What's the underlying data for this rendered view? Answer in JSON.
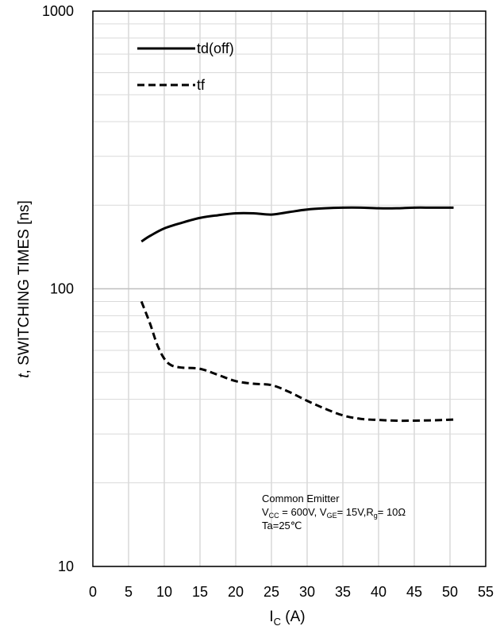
{
  "chart_data": {
    "type": "line",
    "xlabel_main": "I",
    "xlabel_sub": "C",
    "xlabel_unit": " (A)",
    "ylabel_italic": "t",
    "ylabel_rest": ", SWITCHING TIMES [ns]",
    "y_scale": "log",
    "xlim": [
      0,
      55
    ],
    "ylim": [
      10,
      1000
    ],
    "x_ticks": [
      0,
      5,
      10,
      15,
      20,
      25,
      30,
      35,
      40,
      45,
      50,
      55
    ],
    "x_tick_labels": [
      "0",
      "5",
      "10",
      "15",
      "20",
      "25",
      "30",
      "35",
      "40",
      "45",
      "50",
      "55"
    ],
    "y_ticks": [
      10,
      100,
      1000
    ],
    "y_tick_labels": [
      "10",
      "100",
      "1000"
    ],
    "grid": true,
    "legend_position": "top-left",
    "series": [
      {
        "name": "td(off)",
        "style": "solid",
        "color": "#000000",
        "x": [
          6.8,
          8,
          10,
          12.5,
          15,
          17.5,
          20,
          22.5,
          25,
          27.5,
          30,
          32.5,
          35,
          37.5,
          40,
          42.5,
          45,
          47.5,
          50.5
        ],
        "y": [
          148,
          155,
          165,
          173,
          180,
          184,
          187,
          187,
          185,
          189,
          193,
          195,
          196,
          196,
          195,
          195,
          196,
          196,
          196
        ]
      },
      {
        "name": "tf",
        "style": "dashed",
        "color": "#000000",
        "x": [
          6.8,
          8,
          9,
          10,
          11,
          12.5,
          15,
          17.5,
          20,
          22.5,
          25,
          27.5,
          30,
          32.5,
          35,
          37.5,
          40,
          42.5,
          45,
          47.5,
          50.5
        ],
        "y": [
          90,
          75,
          63,
          56,
          53,
          52,
          51.5,
          49,
          46.5,
          45.5,
          45,
          42.5,
          39.5,
          37,
          35,
          34,
          33.7,
          33.5,
          33.5,
          33.6,
          33.8
        ]
      }
    ],
    "annotation": {
      "line1": "Common Emitter",
      "line2_parts": [
        {
          "t": "V",
          "sub": false
        },
        {
          "t": "CC",
          "sub": true
        },
        {
          "t": " = 600V, V",
          "sub": false
        },
        {
          "t": "GE",
          "sub": true
        },
        {
          "t": "= 15V,R",
          "sub": false
        },
        {
          "t": "g",
          "sub": true
        },
        {
          "t": "= 10Ω",
          "sub": false
        }
      ],
      "line3": " Ta=25℃"
    }
  }
}
